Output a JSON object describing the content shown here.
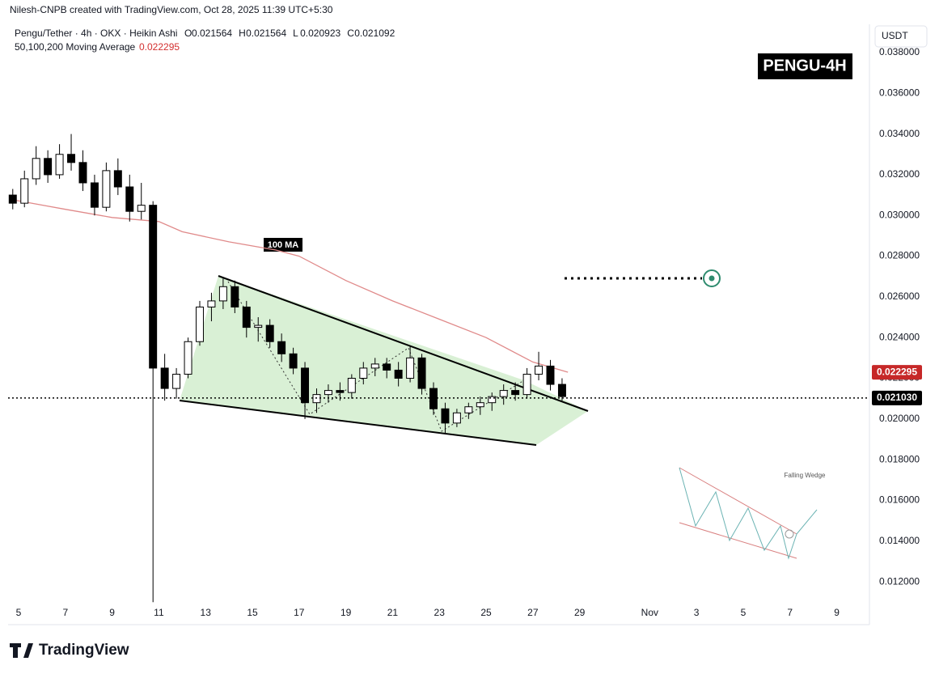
{
  "header": {
    "attribution": "Nilesh-CNPB created with TradingView.com, Oct 28, 2025 11:39 UTC+5:30"
  },
  "chart_data": {
    "type": "candlestick",
    "symbol": "Pengu/Tether · 4h · OKX · Heikin Ashi",
    "ohlc_labels": [
      "O",
      "H",
      "L",
      "C"
    ],
    "ohlc": [
      0.021564,
      0.021564,
      0.020923,
      0.021092
    ],
    "currency": "USDT",
    "badge": "PENGU-4H",
    "annotation": "100 MA",
    "inset_title": "Falling Wedge",
    "up_color": "#ffffff",
    "down_color": "#000000",
    "candles": {
      "x": [
        4.75,
        5.25,
        5.75,
        6.25,
        6.75,
        7.25,
        7.75,
        8.25,
        8.75,
        9.25,
        9.75,
        10.25,
        10.75,
        11.25,
        11.75,
        12.25,
        12.75,
        13.25,
        13.75,
        14.25,
        14.75,
        15.25,
        15.75,
        16.25,
        16.75,
        17.25,
        17.75,
        18.25,
        18.75,
        19.25,
        19.75,
        20.25,
        20.75,
        21.25,
        21.75,
        22.25,
        22.75,
        23.25,
        23.75,
        24.25,
        24.75,
        25.25,
        25.75,
        26.25,
        26.75,
        27.25,
        27.75,
        28.25
      ],
      "open": [
        0.031,
        0.0306,
        0.0318,
        0.0328,
        0.032,
        0.033,
        0.0326,
        0.0316,
        0.0304,
        0.0322,
        0.0314,
        0.0302,
        0.0305,
        0.0225,
        0.0215,
        0.0222,
        0.0238,
        0.0255,
        0.0258,
        0.0265,
        0.0255,
        0.0245,
        0.0246,
        0.0238,
        0.0232,
        0.0225,
        0.0208,
        0.0212,
        0.0214,
        0.0213,
        0.022,
        0.0225,
        0.0227,
        0.0224,
        0.022,
        0.023,
        0.0215,
        0.0205,
        0.0198,
        0.0203,
        0.0206,
        0.0208,
        0.0211,
        0.0214,
        0.0212,
        0.0222,
        0.0226,
        0.0217
      ],
      "high": [
        0.0313,
        0.0322,
        0.0334,
        0.0332,
        0.0335,
        0.034,
        0.0332,
        0.032,
        0.0326,
        0.0328,
        0.032,
        0.0316,
        0.0307,
        0.0232,
        0.0225,
        0.024,
        0.0258,
        0.0262,
        0.0269,
        0.0268,
        0.0258,
        0.025,
        0.0249,
        0.0242,
        0.0235,
        0.0228,
        0.0215,
        0.0217,
        0.0218,
        0.0222,
        0.0228,
        0.023,
        0.023,
        0.0228,
        0.0236,
        0.0232,
        0.0218,
        0.0208,
        0.0205,
        0.0208,
        0.0211,
        0.0213,
        0.0217,
        0.0218,
        0.0225,
        0.0233,
        0.0229,
        0.022
      ],
      "low": [
        0.0303,
        0.0304,
        0.0315,
        0.0316,
        0.0318,
        0.0322,
        0.0312,
        0.03,
        0.0302,
        0.031,
        0.0297,
        0.0298,
        0.011,
        0.0209,
        0.021,
        0.022,
        0.0236,
        0.0248,
        0.0254,
        0.0252,
        0.024,
        0.0238,
        0.0235,
        0.0228,
        0.0222,
        0.02,
        0.0203,
        0.0208,
        0.0209,
        0.021,
        0.0217,
        0.0221,
        0.022,
        0.0216,
        0.0218,
        0.0212,
        0.0202,
        0.0193,
        0.0196,
        0.02,
        0.0202,
        0.0204,
        0.0207,
        0.0209,
        0.021,
        0.0219,
        0.0214,
        0.0209
      ],
      "close": [
        0.0306,
        0.0318,
        0.0328,
        0.032,
        0.033,
        0.0326,
        0.0316,
        0.0304,
        0.0322,
        0.0314,
        0.0302,
        0.0305,
        0.0225,
        0.0215,
        0.0222,
        0.0238,
        0.0255,
        0.0258,
        0.0265,
        0.0255,
        0.0245,
        0.0246,
        0.0238,
        0.0232,
        0.0225,
        0.0208,
        0.0212,
        0.0214,
        0.0213,
        0.022,
        0.0225,
        0.0227,
        0.0224,
        0.022,
        0.023,
        0.0215,
        0.0205,
        0.0198,
        0.0203,
        0.0206,
        0.0208,
        0.0211,
        0.0214,
        0.0212,
        0.0222,
        0.0226,
        0.0217,
        0.0211
      ]
    },
    "series": [
      {
        "name": "50,100,200 Moving Average",
        "color": "#e08a8a",
        "x": [
          4.6,
          7,
          9,
          11,
          12,
          14,
          16,
          17,
          19,
          21,
          23,
          25,
          27,
          28.5
        ],
        "values": [
          0.0308,
          0.0303,
          0.0299,
          0.0297,
          0.0292,
          0.0287,
          0.0283,
          0.028,
          0.0268,
          0.0258,
          0.0249,
          0.024,
          0.0228,
          0.0223
        ],
        "last_value": 0.022295
      }
    ],
    "last_price": {
      "value": 0.02103,
      "label": "0.021030"
    },
    "xlim": [
      4.55,
      41.4
    ],
    "ylim": [
      0.01097,
      0.03939
    ],
    "xticks": [
      5,
      7,
      9,
      11,
      13,
      15,
      17,
      19,
      21,
      23,
      25,
      27,
      29,
      {
        "value": 32,
        "label": "Nov"
      },
      {
        "value": 34,
        "label": "3"
      },
      {
        "value": 36,
        "label": "5"
      },
      {
        "value": 38,
        "label": "7"
      },
      {
        "value": 40,
        "label": "9"
      }
    ],
    "yticks": [
      {
        "value": 0.012,
        "label": "0.012000"
      },
      {
        "value": 0.014,
        "label": "0.014000"
      },
      {
        "value": 0.016,
        "label": "0.016000"
      },
      {
        "value": 0.018,
        "label": "0.018000"
      },
      {
        "value": 0.02,
        "label": "0.020000"
      },
      {
        "value": 0.022,
        "label": "0.022000"
      },
      {
        "value": 0.024,
        "label": "0.024000"
      },
      {
        "value": 0.026,
        "label": "0.026000"
      },
      {
        "value": 0.028,
        "label": "0.028000"
      },
      {
        "value": 0.03,
        "label": "0.030000"
      },
      {
        "value": 0.032,
        "label": "0.032000"
      },
      {
        "value": 0.034,
        "label": "0.034000"
      },
      {
        "value": 0.036,
        "label": "0.036000"
      },
      {
        "value": 0.038,
        "label": "0.038000"
      }
    ],
    "grid": false
  },
  "footer": {
    "brand": "TradingView"
  }
}
